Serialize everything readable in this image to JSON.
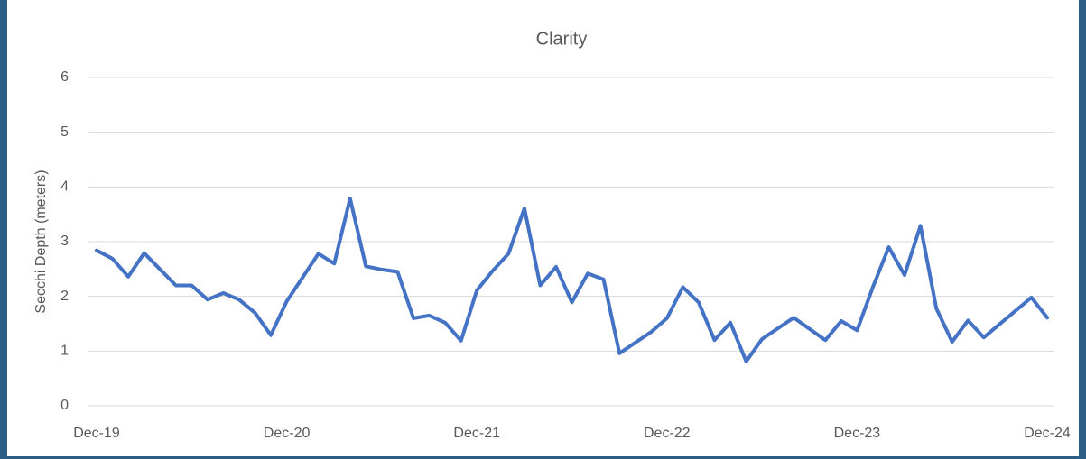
{
  "chart_data": {
    "type": "line",
    "title": "Clarity",
    "y_label": "Secchi Depth (meters)",
    "x": [
      "Dec-19",
      "Jan-20",
      "Feb-20",
      "Mar-20",
      "May-20",
      "Jun-20",
      "Jul-20",
      "Aug-20",
      "Sep-20",
      "Oct-20",
      "Nov-20",
      "Dec-20",
      "Feb-21",
      "Mar-21",
      "Apr-21",
      "May-21",
      "Jun-21",
      "Jul-21",
      "Aug-21",
      "Sep-21",
      "Oct-21",
      "Nov-21",
      "Dec-21",
      "Jan-22",
      "Feb-22",
      "Mar-22",
      "Apr-22",
      "May-22",
      "Jun-22",
      "Jul-22",
      "Aug-22",
      "Sep-22",
      "Nov-22",
      "Dec-22",
      "Jan-23",
      "Feb-23",
      "Mar-23",
      "Apr-23",
      "May-23",
      "Jun-23",
      "Aug-23",
      "Oct-23",
      "Nov-23",
      "Dec-23",
      "Jan-24",
      "Feb-24",
      "Mar-24",
      "Apr-24",
      "May-24",
      "Jun-24",
      "Jul-24",
      "Aug-24",
      "Nov-24",
      "Dec-24"
    ],
    "series": [
      {
        "color": "#4472c4",
        "values": [
          2.84,
          2.69,
          2.36,
          2.79,
          2.2,
          2.2,
          1.94,
          2.06,
          1.94,
          1.7,
          1.29,
          1.91,
          2.78,
          2.6,
          3.79,
          2.55,
          2.49,
          2.45,
          1.6,
          1.65,
          1.52,
          1.19,
          2.11,
          2.47,
          2.78,
          3.61,
          2.2,
          2.54,
          1.89,
          2.42,
          2.31,
          0.96,
          1.35,
          1.6,
          2.17,
          1.89,
          1.2,
          1.52,
          0.81,
          1.22,
          1.61,
          1.2,
          1.55,
          1.38,
          2.17,
          2.9,
          2.39,
          3.29,
          1.78,
          1.17,
          1.56,
          1.25,
          1.98,
          1.61
        ]
      }
    ],
    "xlim": [
      "Dec-19",
      "Dec-24"
    ],
    "xticks": [
      "Dec-19",
      "Dec-20",
      "Dec-21",
      "Dec-22",
      "Dec-23",
      "Dec-24"
    ],
    "ylim": [
      0,
      6
    ],
    "yticks": [
      0,
      1,
      2,
      3,
      4,
      5,
      6
    ],
    "grid": true
  }
}
